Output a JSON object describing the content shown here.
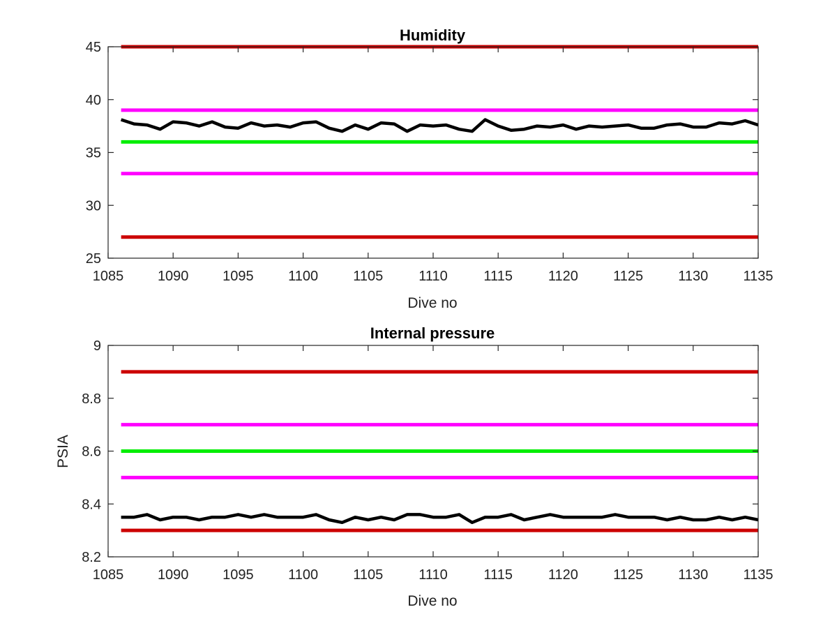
{
  "chart_data": [
    {
      "type": "line",
      "title": "Humidity",
      "xlabel": "Dive no",
      "ylabel": "",
      "xlim": [
        1085,
        1135
      ],
      "ylim": [
        25,
        45
      ],
      "xticks": [
        1085,
        1090,
        1095,
        1100,
        1105,
        1110,
        1115,
        1120,
        1125,
        1130,
        1135
      ],
      "yticks": [
        25,
        30,
        35,
        40,
        45
      ],
      "grid": false,
      "thresholds": [
        {
          "value": 45,
          "color": "#cc0000"
        },
        {
          "value": 39,
          "color": "#ff00ff"
        },
        {
          "value": 36,
          "color": "#00ee00"
        },
        {
          "value": 33,
          "color": "#ff00ff"
        },
        {
          "value": 27,
          "color": "#cc0000"
        }
      ],
      "series": [
        {
          "color": "#000000",
          "x": [
            1086,
            1087,
            1088,
            1089,
            1090,
            1091,
            1092,
            1093,
            1094,
            1095,
            1096,
            1097,
            1098,
            1099,
            1100,
            1101,
            1102,
            1103,
            1104,
            1105,
            1106,
            1107,
            1108,
            1109,
            1110,
            1111,
            1112,
            1113,
            1114,
            1115,
            1116,
            1117,
            1118,
            1119,
            1120,
            1121,
            1122,
            1123,
            1124,
            1125,
            1126,
            1127,
            1128,
            1129,
            1130,
            1131,
            1132,
            1133,
            1134,
            1135
          ],
          "values": [
            38.1,
            37.7,
            37.6,
            37.2,
            37.9,
            37.8,
            37.5,
            37.9,
            37.4,
            37.3,
            37.8,
            37.5,
            37.6,
            37.4,
            37.8,
            37.9,
            37.3,
            37.0,
            37.6,
            37.2,
            37.8,
            37.7,
            37.0,
            37.6,
            37.5,
            37.6,
            37.2,
            37.0,
            38.1,
            37.5,
            37.1,
            37.2,
            37.5,
            37.4,
            37.6,
            37.2,
            37.5,
            37.4,
            37.5,
            37.6,
            37.3,
            37.3,
            37.6,
            37.7,
            37.4,
            37.4,
            37.8,
            37.7,
            38.0,
            37.6
          ]
        }
      ]
    },
    {
      "type": "line",
      "title": "Internal pressure",
      "xlabel": "Dive no",
      "ylabel": "PSIA",
      "xlim": [
        1085,
        1135
      ],
      "ylim": [
        8.2,
        9.0
      ],
      "xticks": [
        1085,
        1090,
        1095,
        1100,
        1105,
        1110,
        1115,
        1120,
        1125,
        1130,
        1135
      ],
      "yticks": [
        8.2,
        8.4,
        8.6,
        8.8,
        9
      ],
      "ytick_labels": [
        "8.2",
        "8.4",
        "8.6",
        "8.8",
        "9"
      ],
      "grid": false,
      "thresholds": [
        {
          "value": 8.9,
          "color": "#cc0000"
        },
        {
          "value": 8.7,
          "color": "#ff00ff"
        },
        {
          "value": 8.6,
          "color": "#00ee00"
        },
        {
          "value": 8.5,
          "color": "#ff00ff"
        },
        {
          "value": 8.3,
          "color": "#cc0000"
        }
      ],
      "series": [
        {
          "color": "#000000",
          "x": [
            1086,
            1087,
            1088,
            1089,
            1090,
            1091,
            1092,
            1093,
            1094,
            1095,
            1096,
            1097,
            1098,
            1099,
            1100,
            1101,
            1102,
            1103,
            1104,
            1105,
            1106,
            1107,
            1108,
            1109,
            1110,
            1111,
            1112,
            1113,
            1114,
            1115,
            1116,
            1117,
            1118,
            1119,
            1120,
            1121,
            1122,
            1123,
            1124,
            1125,
            1126,
            1127,
            1128,
            1129,
            1130,
            1131,
            1132,
            1133,
            1134,
            1135
          ],
          "values": [
            8.35,
            8.35,
            8.36,
            8.34,
            8.35,
            8.35,
            8.34,
            8.35,
            8.35,
            8.36,
            8.35,
            8.36,
            8.35,
            8.35,
            8.35,
            8.36,
            8.34,
            8.33,
            8.35,
            8.34,
            8.35,
            8.34,
            8.36,
            8.36,
            8.35,
            8.35,
            8.36,
            8.33,
            8.35,
            8.35,
            8.36,
            8.34,
            8.35,
            8.36,
            8.35,
            8.35,
            8.35,
            8.35,
            8.36,
            8.35,
            8.35,
            8.35,
            8.34,
            8.35,
            8.34,
            8.34,
            8.35,
            8.34,
            8.35,
            8.34
          ]
        }
      ]
    }
  ]
}
